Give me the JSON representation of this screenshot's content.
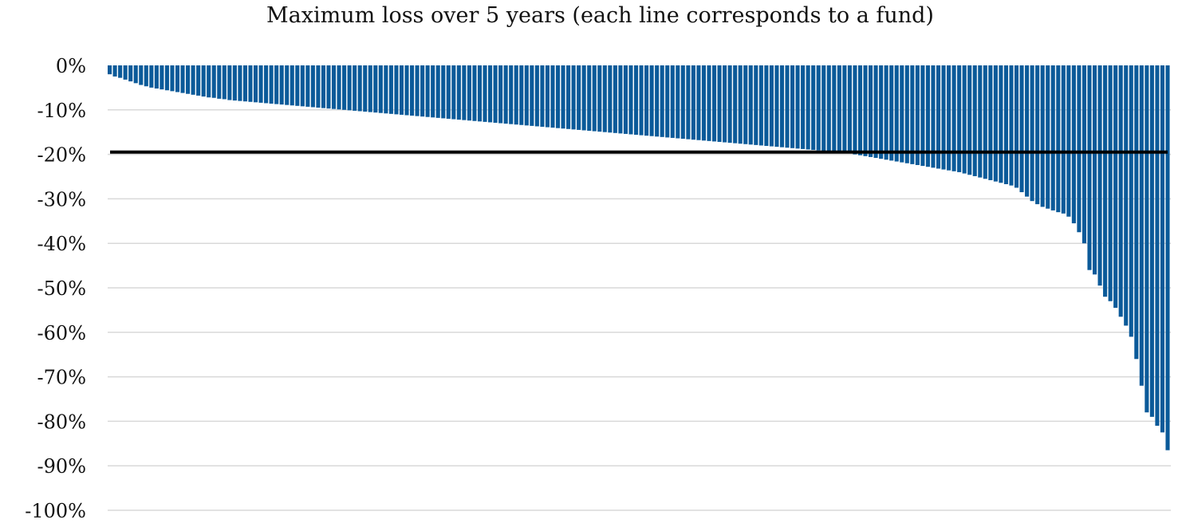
{
  "chart_data": {
    "type": "bar",
    "title": "Maximum loss over 5 years (each line corresponds to a fund)",
    "xlabel": "",
    "ylabel": "",
    "ylim": [
      -100,
      0
    ],
    "yticks": [
      0,
      -10,
      -20,
      -30,
      -40,
      -50,
      -60,
      -70,
      -80,
      -90,
      -100
    ],
    "ytick_labels": [
      "0%",
      "-10%",
      "-20%",
      "-30%",
      "-40%",
      "-50%",
      "-60%",
      "-70%",
      "-80%",
      "-90%",
      "-100%"
    ],
    "grid": true,
    "legend": "none",
    "reference_line": -19.5,
    "bar_color": "#0b5a99",
    "reference_line_color": "#000000",
    "grid_color": "#d9d9d9",
    "values": [
      -2.0,
      -2.5,
      -2.8,
      -3.2,
      -3.6,
      -4.0,
      -4.4,
      -4.7,
      -5.0,
      -5.2,
      -5.4,
      -5.6,
      -5.8,
      -6.0,
      -6.2,
      -6.4,
      -6.6,
      -6.8,
      -7.0,
      -7.2,
      -7.3,
      -7.5,
      -7.6,
      -7.8,
      -7.9,
      -8.0,
      -8.1,
      -8.2,
      -8.3,
      -8.4,
      -8.5,
      -8.6,
      -8.7,
      -8.8,
      -8.9,
      -9.0,
      -9.1,
      -9.2,
      -9.3,
      -9.4,
      -9.5,
      -9.6,
      -9.7,
      -9.8,
      -9.9,
      -10.0,
      -10.1,
      -10.2,
      -10.3,
      -10.4,
      -10.5,
      -10.6,
      -10.7,
      -10.8,
      -10.9,
      -11.0,
      -11.1,
      -11.2,
      -11.3,
      -11.4,
      -11.5,
      -11.6,
      -11.7,
      -11.8,
      -11.9,
      -12.0,
      -12.1,
      -12.2,
      -12.3,
      -12.4,
      -12.5,
      -12.6,
      -12.7,
      -12.8,
      -12.9,
      -13.0,
      -13.1,
      -13.2,
      -13.3,
      -13.4,
      -13.5,
      -13.6,
      -13.7,
      -13.8,
      -13.9,
      -14.0,
      -14.1,
      -14.2,
      -14.3,
      -14.4,
      -14.5,
      -14.6,
      -14.7,
      -14.8,
      -14.9,
      -15.0,
      -15.1,
      -15.2,
      -15.3,
      -15.4,
      -15.5,
      -15.6,
      -15.7,
      -15.8,
      -15.9,
      -16.0,
      -16.1,
      -16.2,
      -16.3,
      -16.4,
      -16.5,
      -16.6,
      -16.7,
      -16.8,
      -16.9,
      -17.0,
      -17.1,
      -17.2,
      -17.3,
      -17.4,
      -17.5,
      -17.6,
      -17.7,
      -17.8,
      -17.9,
      -18.0,
      -18.1,
      -18.2,
      -18.3,
      -18.4,
      -18.5,
      -18.6,
      -18.7,
      -18.8,
      -18.9,
      -19.0,
      -19.1,
      -19.2,
      -19.3,
      -19.4,
      -19.5,
      -19.6,
      -19.8,
      -20.0,
      -20.2,
      -20.4,
      -20.6,
      -20.8,
      -21.0,
      -21.2,
      -21.4,
      -21.6,
      -21.8,
      -22.0,
      -22.2,
      -22.4,
      -22.6,
      -22.8,
      -23.0,
      -23.2,
      -23.4,
      -23.6,
      -23.8,
      -24.0,
      -24.3,
      -24.6,
      -24.9,
      -25.2,
      -25.5,
      -25.8,
      -26.1,
      -26.4,
      -26.7,
      -27.0,
      -27.5,
      -28.5,
      -29.5,
      -30.5,
      -31.2,
      -31.8,
      -32.2,
      -32.6,
      -33.0,
      -33.3,
      -34.0,
      -35.5,
      -37.5,
      -40.0,
      -46.0,
      -47.0,
      -49.5,
      -52.0,
      -53.0,
      -54.5,
      -56.5,
      -58.5,
      -61.0,
      -66.0,
      -72.0,
      -78.0,
      -79.0,
      -81.0,
      -82.5,
      -86.5
    ]
  }
}
